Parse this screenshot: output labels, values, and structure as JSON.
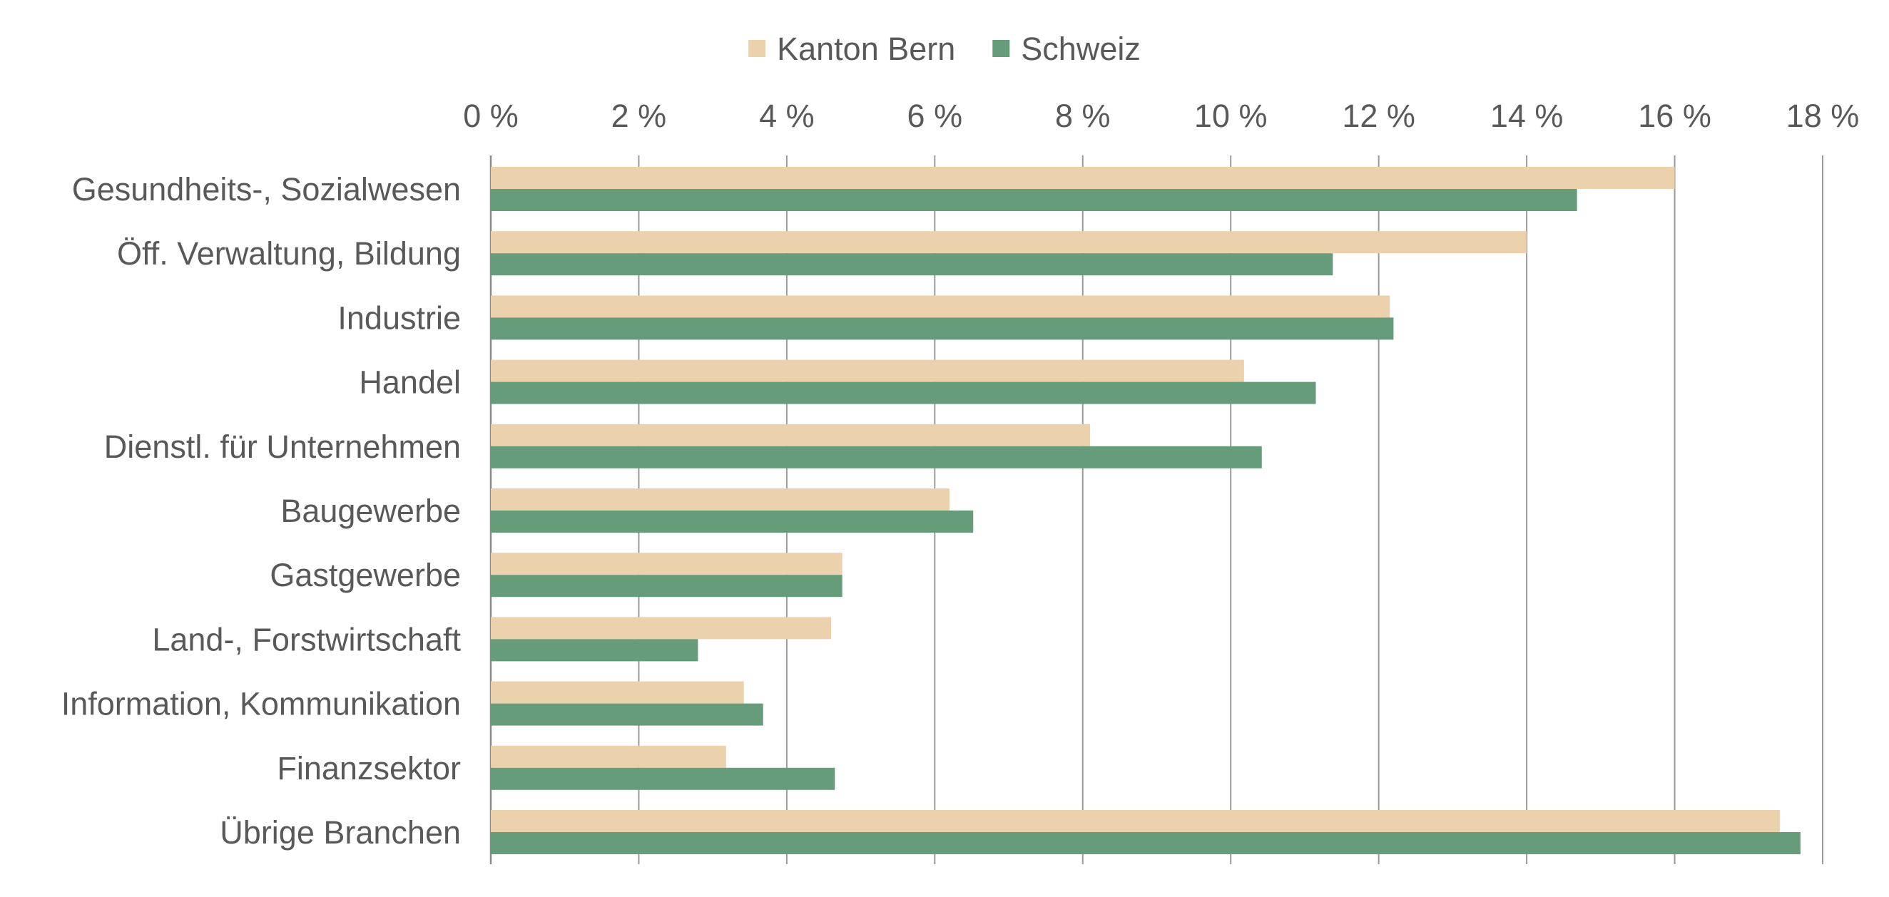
{
  "chart_data": {
    "type": "bar",
    "orientation": "horizontal",
    "categories": [
      "Gesundheits-, Sozialwesen",
      "Öff. Verwaltung, Bildung",
      "Industrie",
      "Handel",
      "Dienstl. für Unternehmen",
      "Baugewerbe",
      "Gastgewerbe",
      "Land-, Forstwirtschaft",
      "Information, Kommunikation",
      "Finanzsektor",
      "Übrige Branchen"
    ],
    "series": [
      {
        "name": "Kanton Bern",
        "color": "#ebd2ad",
        "values": [
          16.0,
          14.0,
          12.15,
          10.18,
          8.1,
          6.2,
          4.75,
          4.6,
          3.42,
          3.18,
          17.42
        ]
      },
      {
        "name": "Schweiz",
        "color": "#669c79",
        "values": [
          14.68,
          11.38,
          12.2,
          11.15,
          10.42,
          6.52,
          4.75,
          2.8,
          3.68,
          4.65,
          17.7
        ]
      }
    ],
    "xlim": [
      0,
      18
    ],
    "x_ticks": [
      "0 %",
      "2 %",
      "4 %",
      "6 %",
      "8 %",
      "10 %",
      "12 %",
      "14 %",
      "16 %",
      "18 %"
    ],
    "x_axis_position": "top",
    "grid": true,
    "legend_position": "top-center",
    "xlabel": "",
    "ylabel": "",
    "title": ""
  }
}
